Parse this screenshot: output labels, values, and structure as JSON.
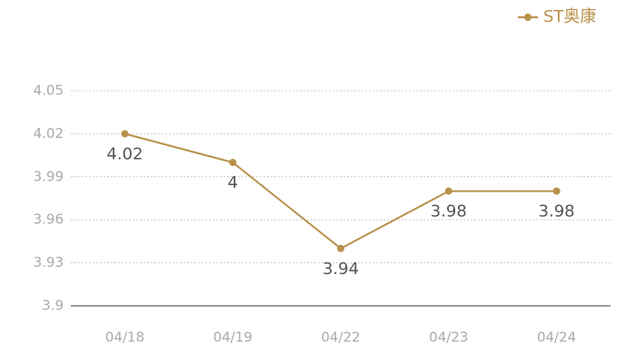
{
  "chart_data": {
    "type": "line",
    "categories": [
      "04/18",
      "04/19",
      "04/22",
      "04/23",
      "04/24"
    ],
    "series": [
      {
        "name": "ST奥康",
        "color": "#b8914b",
        "values": [
          4.02,
          4,
          3.94,
          3.98,
          3.98
        ]
      }
    ],
    "ylim": [
      3.9,
      4.05
    ],
    "yticks": [
      3.9,
      3.93,
      3.96,
      3.99,
      4.02,
      4.05
    ],
    "grid": true,
    "legend": "top-right",
    "data_labels": true
  }
}
